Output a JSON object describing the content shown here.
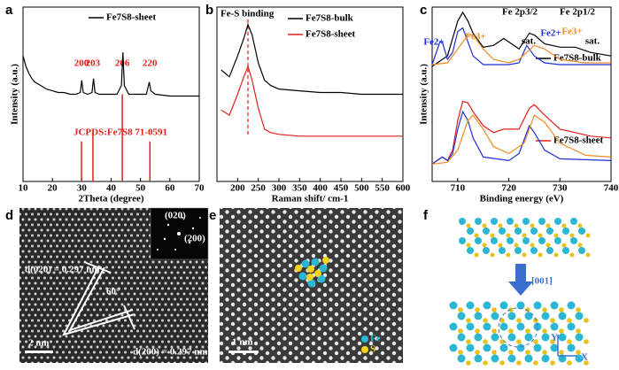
{
  "panel_labels": [
    "a",
    "b",
    "c",
    "d",
    "e",
    "f"
  ],
  "chart_data": [
    {
      "type": "line",
      "xlabel": "2Theta (degree)",
      "ylabel": "Intensity (a.u.)",
      "xlim": [
        10,
        70
      ],
      "xticks": [
        10,
        20,
        30,
        40,
        50,
        60,
        70
      ],
      "ylim": [
        0,
        100
      ],
      "series": [
        {
          "name": "Fe7S8-sheet",
          "color": "#000000",
          "x": [
            10,
            11,
            12,
            13,
            14,
            16,
            18,
            20,
            22,
            24,
            26,
            28,
            29.5,
            30,
            30.5,
            32,
            33.5,
            34,
            34.5,
            36,
            40,
            42,
            43.5,
            44,
            44.5,
            46,
            50,
            52,
            53,
            53.5,
            55,
            60,
            65,
            70
          ],
          "values": [
            72,
            66,
            62,
            59,
            57,
            55,
            53,
            52,
            51,
            51,
            50,
            50,
            51,
            58,
            51,
            50,
            51,
            59,
            51,
            50,
            50,
            50,
            55,
            74,
            55,
            50,
            50,
            50,
            57,
            52,
            50,
            49,
            49,
            49
          ]
        }
      ],
      "reference": {
        "name": "JCPDS:Fe7S8 71-0591",
        "color": "#e0201b",
        "x": [
          29.9,
          33.8,
          43.8,
          53.2
        ],
        "values": [
          23,
          28,
          50,
          23
        ]
      },
      "peak_labels": [
        "200",
        "203",
        "206",
        "220"
      ]
    },
    {
      "type": "line",
      "xlabel": "Raman shift/ cm-1",
      "xlim": [
        150,
        600
      ],
      "xticks": [
        200,
        250,
        300,
        350,
        400,
        450,
        500,
        550,
        600
      ],
      "ylim": [
        0,
        100
      ],
      "series": [
        {
          "name": "Fe7S8-bulk",
          "color": "#000000",
          "x": [
            160,
            180,
            200,
            215,
            225,
            235,
            250,
            265,
            280,
            300,
            350,
            400,
            450,
            500,
            550,
            600
          ],
          "values": [
            64,
            60,
            72,
            82,
            90,
            84,
            68,
            58,
            55,
            53,
            52,
            51,
            51,
            50,
            50,
            50
          ]
        },
        {
          "name": "Fe7S8-sheet",
          "color": "#e0201b",
          "x": [
            160,
            180,
            200,
            215,
            225,
            235,
            250,
            265,
            280,
            300,
            350,
            400,
            450,
            500,
            550,
            600
          ],
          "values": [
            41,
            38,
            50,
            60,
            66,
            58,
            42,
            30,
            28,
            27,
            26,
            26,
            26,
            26,
            26,
            26
          ]
        }
      ],
      "marker": {
        "text": "Fe-S binding",
        "x": 225,
        "color": "#e0201b"
      }
    },
    {
      "type": "line",
      "xlabel": "Binding energy (eV)",
      "ylabel": "Intensity (a.u.)",
      "xlim": [
        705,
        740
      ],
      "xticks": [
        710,
        720,
        730,
        740
      ],
      "ylim": [
        0,
        100
      ],
      "series": [
        {
          "name": "Fe7S8-bulk",
          "color": "#000000",
          "x": [
            705,
            707,
            708,
            709,
            710,
            711,
            712,
            713,
            715,
            717,
            719,
            720,
            722,
            724,
            725,
            727,
            730,
            733,
            736,
            740
          ],
          "values": [
            66,
            70,
            72,
            82,
            92,
            97,
            92,
            85,
            77,
            78,
            82,
            80,
            76,
            85,
            84,
            79,
            77,
            77,
            74,
            72
          ]
        },
        {
          "color": "#1f2fd6",
          "x": [
            705,
            706.5,
            707,
            708,
            709,
            710,
            711,
            712,
            713,
            715,
            720,
            722,
            723.5,
            725,
            727,
            730,
            740
          ],
          "values": [
            67,
            80,
            80,
            70,
            74,
            86,
            88,
            80,
            72,
            67,
            67,
            68,
            78,
            72,
            68,
            67,
            67
          ]
        },
        {
          "color": "#f08a24",
          "x": [
            705,
            708,
            710,
            712,
            713,
            715,
            717,
            720,
            722,
            725,
            727,
            730,
            735,
            740
          ],
          "values": [
            67,
            68,
            76,
            84,
            84,
            76,
            70,
            68,
            70,
            78,
            76,
            70,
            68,
            68
          ]
        },
        {
          "name": "Fe7S8-sheet",
          "color": "#e0201b",
          "x": [
            705,
            707,
            708,
            709,
            710,
            711,
            712,
            713,
            715,
            717,
            719,
            722,
            724,
            725,
            727,
            730,
            733,
            736,
            740
          ],
          "values": [
            10,
            14,
            12,
            18,
            35,
            46,
            45,
            40,
            32,
            28,
            30,
            30,
            42,
            44,
            38,
            30,
            28,
            26,
            25
          ]
        },
        {
          "color": "#1f2fd6",
          "x": [
            705,
            707,
            708,
            709,
            710,
            711,
            712,
            713,
            715,
            720,
            722,
            724,
            725,
            727,
            730,
            740
          ],
          "values": [
            10,
            14,
            12,
            16,
            30,
            40,
            35,
            25,
            14,
            12,
            16,
            32,
            28,
            18,
            13,
            12
          ]
        },
        {
          "color": "#f08a24",
          "x": [
            705,
            708,
            710,
            712,
            713,
            715,
            717,
            720,
            723,
            725,
            727,
            730,
            735,
            740
          ],
          "values": [
            10,
            11,
            18,
            35,
            38,
            30,
            20,
            16,
            22,
            38,
            34,
            22,
            15,
            14
          ]
        }
      ],
      "annotations": [
        {
          "text": "Fe 2p3/2",
          "color": "#000000"
        },
        {
          "text": "Fe 2p1/2",
          "color": "#000000"
        },
        {
          "text": "Fe2+",
          "color": "#1f2fd6"
        },
        {
          "text": "Fe3+",
          "color": "#f08a24"
        },
        {
          "text": "sat.",
          "color": "#000000"
        },
        {
          "text": "Fe2+",
          "color": "#1f2fd6"
        },
        {
          "text": "Fe3+",
          "color": "#f08a24"
        },
        {
          "text": "sat.",
          "color": "#000000"
        }
      ]
    }
  ],
  "images": [
    {
      "labels": [
        "(020)",
        "(200)",
        "d(020) = 0.297 nm",
        "60°",
        "d(200) = 0.297 nm",
        "2 nm"
      ]
    },
    {
      "labels": [
        "Fe",
        "S",
        "1 nm"
      ]
    },
    {
      "labels": [
        "[001]",
        "Y",
        "X"
      ]
    }
  ]
}
